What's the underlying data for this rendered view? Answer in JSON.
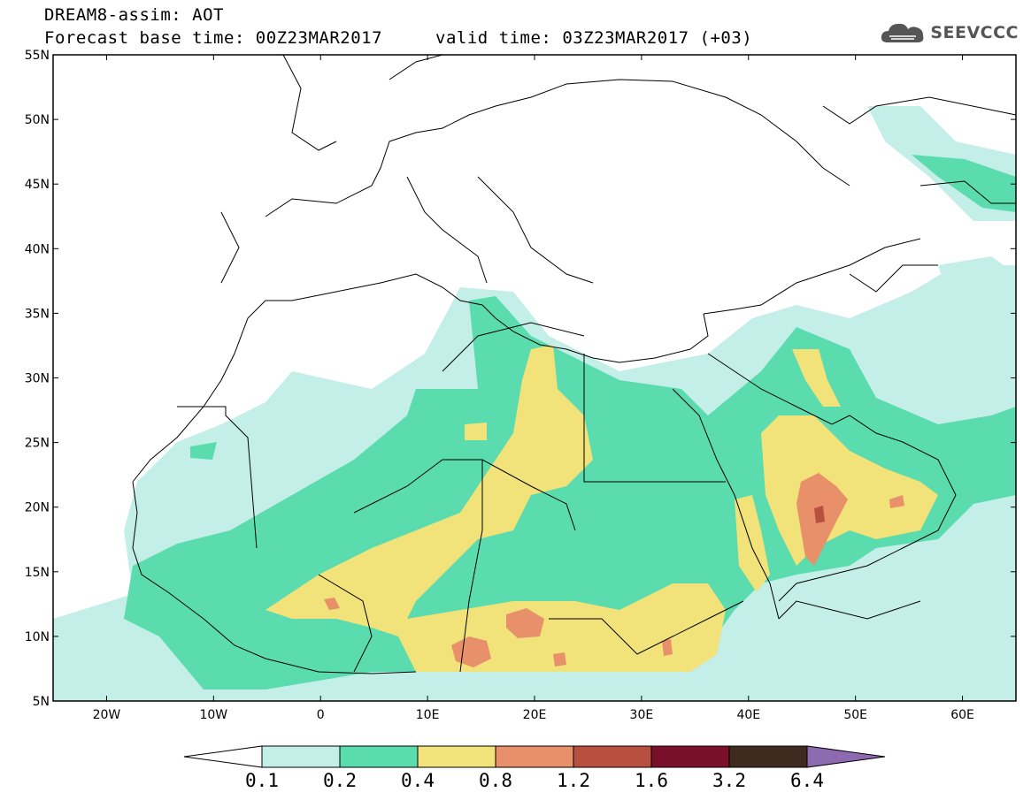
{
  "header": {
    "title_line1": "DREAM8-assim: AOT",
    "base_time": "Forecast base time: 00Z23MAR2017",
    "valid_time": "valid time: 03Z23MAR2017 (+03)",
    "logo_text": "SEEVCCC"
  },
  "map": {
    "projection": "lat-lon",
    "lon_range": [
      -25,
      65
    ],
    "lat_range": [
      5,
      55
    ],
    "lat_labels": [
      "55N",
      "50N",
      "45N",
      "40N",
      "35N",
      "30N",
      "25N",
      "20N",
      "15N",
      "10N",
      "5N"
    ],
    "lon_labels": [
      "20W",
      "10W",
      "0",
      "10E",
      "20E",
      "30E",
      "40E",
      "50E",
      "60E"
    ],
    "lon_label_values": [
      -20,
      -10,
      0,
      10,
      20,
      30,
      40,
      50,
      60
    ],
    "lat_label_values": [
      55,
      50,
      45,
      40,
      35,
      30,
      25,
      20,
      15,
      10,
      5
    ]
  },
  "colorbar": {
    "levels": [
      "0.1",
      "0.2",
      "0.4",
      "0.8",
      "1.2",
      "1.6",
      "3.2",
      "6.4"
    ],
    "colors": [
      "#ffffff",
      "#c4efe8",
      "#5bdcae",
      "#f2e27a",
      "#e8906a",
      "#b85040",
      "#7a0f2a",
      "#3e2a1e",
      "#8e6ab0"
    ]
  }
}
